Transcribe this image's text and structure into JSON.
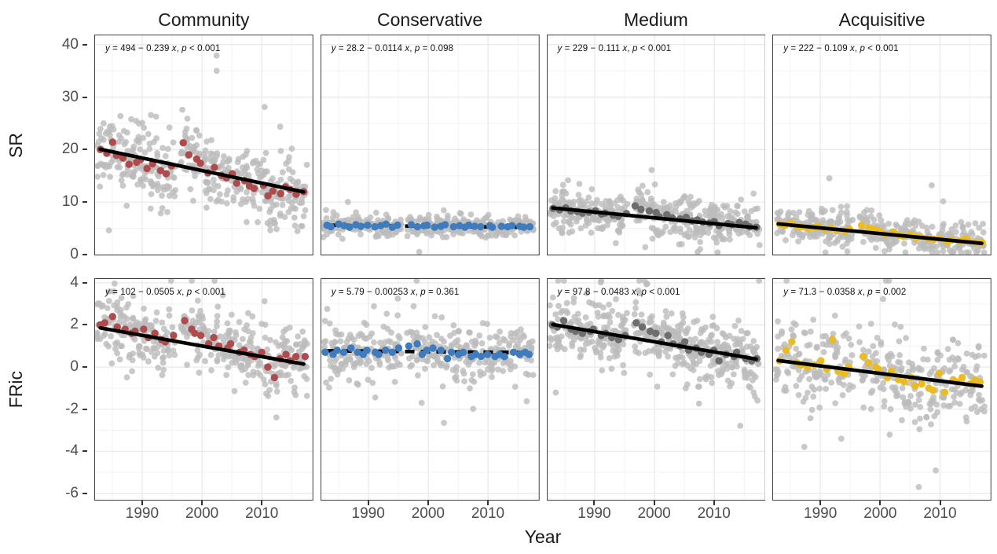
{
  "chart_data": {
    "type": "scatter",
    "xlabel": "Year",
    "columns": [
      "Community",
      "Conservative",
      "Medium",
      "Acquisitive"
    ],
    "rows": [
      "SR",
      "FRic"
    ],
    "years_start": 1983,
    "years_end": 2017,
    "x": {
      "min": 1982,
      "max": 2018.6,
      "ticks": [
        1990,
        2000,
        2010
      ],
      "minor": [
        1985,
        1995,
        2005,
        2015
      ]
    },
    "row_axes": [
      {
        "label": "SR",
        "min": -0.15,
        "max": 41.9,
        "ticks": [
          40,
          30,
          20,
          10,
          0
        ],
        "minor": [
          35,
          25,
          15,
          5
        ]
      },
      {
        "label": "FRic",
        "min": -6.34,
        "max": 4.22,
        "ticks": [
          4,
          2,
          0,
          -2,
          -4,
          -6
        ],
        "minor": [
          3,
          1,
          -1,
          -3,
          -5
        ]
      }
    ],
    "regression_x_range": [
      1983,
      2017
    ],
    "style": {
      "background_point_color": "#BCBCBC",
      "line_color": "#000000",
      "grid_major_color": "#E8E8E8",
      "grid_minor_color": "#F3F3F3",
      "panel_border_color": "#404040"
    },
    "panels": [
      {
        "name": "sr-community",
        "row": 0,
        "column": "Community",
        "point_color": "#AF4A4D",
        "annotation": [
          [
            "y",
            1
          ],
          [
            " = 494 − 0.239 ",
            0
          ],
          [
            "x",
            1
          ],
          [
            ", ",
            0
          ],
          [
            "p",
            1
          ],
          [
            " < 0.001",
            0
          ]
        ],
        "regression": {
          "intercept": 494,
          "slope": -0.239,
          "p_label": "p < 0.001",
          "significant": true
        },
        "means": [
          20.0,
          19.3,
          21.4,
          18.9,
          18.4,
          17.2,
          17.6,
          18.1,
          16.4,
          17.3,
          16.0,
          15.4,
          16.9,
          null,
          21.3,
          19.0,
          18.2,
          17.4,
          15.6,
          16.6,
          15.1,
          14.6,
          15.4,
          13.6,
          14.1,
          13.1,
          12.6,
          13.2,
          11.2,
          12.1,
          11.6,
          12.9,
          12.4,
          11.5,
          12.0
        ],
        "bg": {
          "n": 13,
          "sd": 3.2,
          "clip": [
            0.4,
            41.0
          ],
          "seed": 11
        }
      },
      {
        "name": "sr-conservative",
        "row": 0,
        "column": "Conservative",
        "point_color": "#3E7CBE",
        "annotation": [
          [
            "y",
            1
          ],
          [
            " = 28.2 − 0.0114 ",
            0
          ],
          [
            "x",
            1
          ],
          [
            ", ",
            0
          ],
          [
            "p",
            1
          ],
          [
            " = 0.098",
            0
          ]
        ],
        "regression": {
          "intercept": 28.2,
          "slope": -0.0114,
          "p_label": "p = 0.098",
          "significant": false
        },
        "means": [
          5.6,
          5.3,
          5.8,
          5.5,
          5.2,
          5.7,
          5.4,
          5.6,
          5.3,
          5.5,
          5.8,
          5.2,
          5.6,
          null,
          5.7,
          5.3,
          5.5,
          5.6,
          5.2,
          5.4,
          5.7,
          5.3,
          5.5,
          5.2,
          5.6,
          5.4,
          5.3,
          5.5,
          5.2,
          5.4,
          5.3,
          5.5,
          5.4,
          5.2,
          5.3
        ],
        "bg": {
          "n": 11,
          "sd": 0.95,
          "clip": [
            0.4,
            41.0
          ],
          "seed": 22
        }
      },
      {
        "name": "sr-medium",
        "row": 0,
        "column": "Medium",
        "point_color": "#6E6E6E",
        "annotation": [
          [
            "y",
            1
          ],
          [
            " = 229 − 0.111 ",
            0
          ],
          [
            "x",
            1
          ],
          [
            ", ",
            0
          ],
          [
            "p",
            1
          ],
          [
            " < 0.001",
            0
          ]
        ],
        "regression": {
          "intercept": 229,
          "slope": -0.111,
          "p_label": "p < 0.001",
          "significant": true
        },
        "means": [
          8.8,
          8.5,
          8.9,
          8.3,
          8.2,
          7.9,
          8.1,
          8.3,
          7.7,
          7.9,
          7.5,
          7.3,
          7.8,
          null,
          9.3,
          8.6,
          8.3,
          8.0,
          7.2,
          7.6,
          7.0,
          6.8,
          7.1,
          6.4,
          6.6,
          6.2,
          6.0,
          6.3,
          5.5,
          5.9,
          5.7,
          6.1,
          5.8,
          5.3,
          5.2
        ],
        "bg": {
          "n": 13,
          "sd": 2.0,
          "clip": [
            0.4,
            41.0
          ],
          "seed": 33
        }
      },
      {
        "name": "sr-acquisitive",
        "row": 0,
        "column": "Acquisitive",
        "point_color": "#EABC21",
        "annotation": [
          [
            "y",
            1
          ],
          [
            " = 222 − 0.109 ",
            0
          ],
          [
            "x",
            1
          ],
          [
            ", ",
            0
          ],
          [
            "p",
            1
          ],
          [
            " < 0.001",
            0
          ]
        ],
        "regression": {
          "intercept": 222,
          "slope": -0.109,
          "p_label": "p < 0.001",
          "significant": true
        },
        "means": [
          5.8,
          5.5,
          6.0,
          5.4,
          5.3,
          5.0,
          5.2,
          5.4,
          4.8,
          5.0,
          4.6,
          4.4,
          4.9,
          null,
          5.6,
          5.1,
          4.8,
          4.5,
          3.9,
          4.3,
          3.7,
          3.5,
          3.8,
          3.2,
          3.4,
          3.0,
          2.9,
          3.1,
          2.4,
          2.8,
          2.6,
          3.0,
          2.7,
          2.3,
          2.3
        ],
        "bg": {
          "n": 11,
          "sd": 1.5,
          "clip": [
            0.4,
            41.0
          ],
          "seed": 44
        }
      },
      {
        "name": "fric-community",
        "row": 1,
        "column": "Community",
        "point_color": "#AF4A4D",
        "annotation": [
          [
            "y",
            1
          ],
          [
            " = 102 − 0.0505 ",
            0
          ],
          [
            "x",
            1
          ],
          [
            ", ",
            0
          ],
          [
            "p",
            1
          ],
          [
            " < 0.001",
            0
          ]
        ],
        "regression": {
          "intercept": 102,
          "slope": -0.0505,
          "p_label": "p < 0.001",
          "significant": true
        },
        "means": [
          2.0,
          2.1,
          2.4,
          1.9,
          1.8,
          1.6,
          1.7,
          1.8,
          1.4,
          1.6,
          1.3,
          1.2,
          1.5,
          null,
          2.2,
          1.8,
          1.6,
          1.5,
          1.1,
          1.4,
          1.0,
          0.9,
          1.1,
          0.7,
          0.8,
          0.6,
          0.5,
          0.7,
          0.0,
          -0.5,
          0.4,
          0.6,
          0.3,
          0.5,
          0.5
        ],
        "bg": {
          "n": 12,
          "sd": 0.75,
          "clip": [
            -6.1,
            4.1
          ],
          "seed": 55
        }
      },
      {
        "name": "fric-conservative",
        "row": 1,
        "column": "Conservative",
        "point_color": "#3E7CBE",
        "annotation": [
          [
            "y",
            1
          ],
          [
            " = 5.79 − 0.00253 ",
            0
          ],
          [
            "x",
            1
          ],
          [
            ", ",
            0
          ],
          [
            "p",
            1
          ],
          [
            " = 0.361",
            0
          ]
        ],
        "regression": {
          "intercept": 5.79,
          "slope": -0.00253,
          "p_label": "p = 0.361",
          "significant": false
        },
        "means": [
          0.7,
          0.6,
          0.8,
          0.7,
          0.9,
          0.7,
          0.6,
          0.8,
          0.7,
          0.6,
          0.8,
          0.7,
          0.9,
          null,
          1.0,
          1.1,
          0.6,
          0.8,
          0.9,
          0.8,
          0.4,
          0.7,
          0.6,
          0.7,
          0.5,
          0.6,
          0.5,
          0.6,
          0.5,
          0.6,
          0.5,
          0.7,
          0.6,
          0.7,
          0.6
        ],
        "bg": {
          "n": 11,
          "sd": 0.6,
          "clip": [
            -6.1,
            4.1
          ],
          "seed": 66
        }
      },
      {
        "name": "fric-medium",
        "row": 1,
        "column": "Medium",
        "point_color": "#6E6E6E",
        "annotation": [
          [
            "y",
            1
          ],
          [
            " = 97.8 − 0.0483 ",
            0
          ],
          [
            "x",
            1
          ],
          [
            ", ",
            0
          ],
          [
            "p",
            1
          ],
          [
            " < 0.001",
            0
          ]
        ],
        "regression": {
          "intercept": 97.8,
          "slope": -0.0483,
          "p_label": "p < 0.001",
          "significant": true
        },
        "means": [
          2.0,
          1.9,
          2.2,
          1.8,
          1.7,
          1.6,
          1.7,
          1.8,
          1.5,
          1.6,
          1.4,
          1.3,
          1.5,
          null,
          2.1,
          1.9,
          1.7,
          1.6,
          1.2,
          1.5,
          1.1,
          1.0,
          1.2,
          0.8,
          0.9,
          0.7,
          0.6,
          0.8,
          0.3,
          0.6,
          0.5,
          0.7,
          0.4,
          0.3,
          0.4
        ],
        "bg": {
          "n": 13,
          "sd": 0.75,
          "clip": [
            -6.1,
            4.1
          ],
          "seed": 77
        }
      },
      {
        "name": "fric-acquisitive",
        "row": 1,
        "column": "Acquisitive",
        "point_color": "#EABC21",
        "annotation": [
          [
            "y",
            1
          ],
          [
            " = 71.3 − 0.0358 ",
            0
          ],
          [
            "x",
            1
          ],
          [
            ", ",
            0
          ],
          [
            "p",
            1
          ],
          [
            " = 0.002",
            0
          ]
        ],
        "regression": {
          "intercept": 71.3,
          "slope": -0.0358,
          "p_label": "p = 0.002",
          "significant": true
        },
        "means": [
          0.3,
          0.8,
          1.2,
          0.2,
          0.1,
          0.0,
          0.1,
          0.3,
          -0.1,
          1.3,
          -0.2,
          -0.3,
          0.0,
          null,
          0.5,
          0.2,
          0.0,
          -0.1,
          -0.5,
          -0.2,
          -0.6,
          -0.7,
          -0.5,
          -0.9,
          -0.8,
          -1.0,
          -1.1,
          -0.3,
          -1.2,
          -0.6,
          -0.7,
          -0.5,
          -0.8,
          -0.6,
          -0.7
        ],
        "bg": {
          "n": 11,
          "sd": 0.95,
          "clip": [
            -6.1,
            4.1
          ],
          "seed": 88
        }
      }
    ]
  }
}
